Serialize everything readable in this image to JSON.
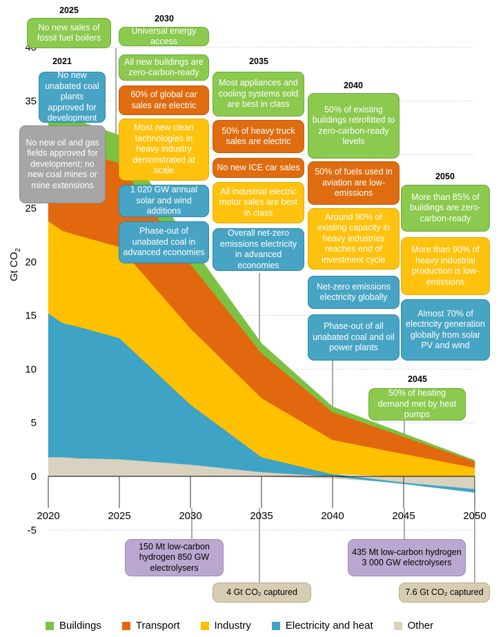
{
  "chart_data": {
    "type": "area",
    "ylabel_main": "Gt CO",
    "ylabel_sub": "2",
    "ylim": [
      -5,
      40
    ],
    "y_ticks": [
      "40",
      "35",
      "30",
      "25",
      "20",
      "15",
      "10",
      "5",
      "0",
      "-5"
    ],
    "x_ticks": [
      "2020",
      "2025",
      "2030",
      "2035",
      "2040",
      "2045",
      "2050"
    ],
    "x": [
      2020,
      2021,
      2022,
      2025,
      2030,
      2035,
      2040,
      2045,
      2050
    ],
    "series": [
      {
        "name": "Buildings",
        "color": "#7CC242",
        "values": [
          2.9,
          2.9,
          2.8,
          2.6,
          1.8,
          0.9,
          0.5,
          0.3,
          0.1
        ]
      },
      {
        "name": "Transport",
        "color": "#E2680F",
        "values": [
          7.1,
          8.0,
          7.9,
          7.8,
          6.0,
          4.2,
          2.6,
          1.6,
          0.6
        ]
      },
      {
        "name": "Industry",
        "color": "#FFC000",
        "values": [
          8.6,
          8.6,
          8.5,
          8.5,
          7.1,
          5.5,
          3.2,
          2.1,
          0.8
        ]
      },
      {
        "name": "Electricity and heat",
        "color": "#3FA3C5",
        "values": [
          13.4,
          12.5,
          12.3,
          11.3,
          5.6,
          1.4,
          0.2,
          -0.1,
          -0.3
        ]
      },
      {
        "name": "Other",
        "color": "#D9D2BE",
        "values": [
          1.8,
          1.8,
          1.7,
          1.6,
          1.1,
          0.4,
          -0.2,
          -0.6,
          -1.2
        ]
      }
    ]
  },
  "year_labels": [
    {
      "text": "2025"
    },
    {
      "text": "2021"
    },
    {
      "text": "2030"
    },
    {
      "text": "2035"
    },
    {
      "text": "2040"
    },
    {
      "text": "2050"
    },
    {
      "text": "2045"
    }
  ],
  "milestones": [
    {
      "text": "No new sales of fossil fuel boilers",
      "color": "green"
    },
    {
      "text": "No new unabated coal plants approved for development",
      "color": "blue"
    },
    {
      "text": "No new oil and gas fields approved for development; no new coal mines or mine extensions",
      "color": "grey"
    },
    {
      "text": "Universal energy access",
      "color": "green"
    },
    {
      "text": "All new buildings are zero-carbon-ready",
      "color": "green"
    },
    {
      "text": "60% of global car sales are electric",
      "color": "orange"
    },
    {
      "text": "Most new clean technologies in heavy industry demonstrated at scale",
      "color": "yellow"
    },
    {
      "text": "1 020 GW annual solar and wind additions",
      "color": "blue"
    },
    {
      "text": "Phase-out of unabated coal in advanced economies",
      "color": "blue"
    },
    {
      "text": "Most appliances and cooling systems sold are best in class",
      "color": "green"
    },
    {
      "text": "50% of heavy truck sales are electric",
      "color": "orange"
    },
    {
      "text": "No new ICE car sales",
      "color": "orange"
    },
    {
      "text": "All industrial electric motor sales are best in class",
      "color": "yellow"
    },
    {
      "text": "Overall net-zero emissions electricity in advanced economies",
      "color": "blue"
    },
    {
      "text": "50% of existing buildings retrofitted to zero-carbon-ready levels",
      "color": "green"
    },
    {
      "text": "50% of fuels used in aviation are low-emissions",
      "color": "orange"
    },
    {
      "text": "Around 90% of existing capacity in heavy industries reaches end of investment cycle",
      "color": "yellow"
    },
    {
      "text": "Net-zero emissions electricity globally",
      "color": "blue"
    },
    {
      "text": "Phase-out of all unabated coal and oil power plants",
      "color": "blue"
    },
    {
      "text": "More than 85% of buildings are zero-carbon-ready",
      "color": "green"
    },
    {
      "text": "More than 90% of heavy industrial production is low-emissions",
      "color": "yellow"
    },
    {
      "text": "Almost 70% of electricity generation globally from solar PV and wind",
      "color": "blue"
    },
    {
      "text": "50% of heating demand met by heat pumps",
      "color": "green"
    },
    {
      "text": "150 Mt low-carbon hydrogen 850 GW electrolysers",
      "color": "purple"
    },
    {
      "text": "4 Gt CO₂ captured",
      "color": "tan"
    },
    {
      "text": "435 Mt low-carbon hydrogen 3 000 GW electrolysers",
      "color": "purple"
    },
    {
      "text": "7.6 Gt CO₂ captured",
      "color": "tan"
    }
  ],
  "palette": {
    "green": {
      "bg": "#8BC94F",
      "border": "#6BAA35",
      "fg": "#ffffff"
    },
    "blue": {
      "bg": "#47A4C4",
      "border": "#2D89AA",
      "fg": "#ffffff"
    },
    "grey": {
      "bg": "#A6A6A6",
      "border": "#8A8A8A",
      "fg": "#ffffff"
    },
    "orange": {
      "bg": "#E06C10",
      "border": "#C25A08",
      "fg": "#ffffff"
    },
    "yellow": {
      "bg": "#FFC20E",
      "border": "#E6A800",
      "fg": "#ffffff"
    },
    "purple": {
      "bg": "#BBA8D0",
      "border": "#9C87B8",
      "fg": "#000000"
    },
    "tan": {
      "bg": "#D7CDB2",
      "border": "#B5A98B",
      "fg": "#000000"
    }
  }
}
